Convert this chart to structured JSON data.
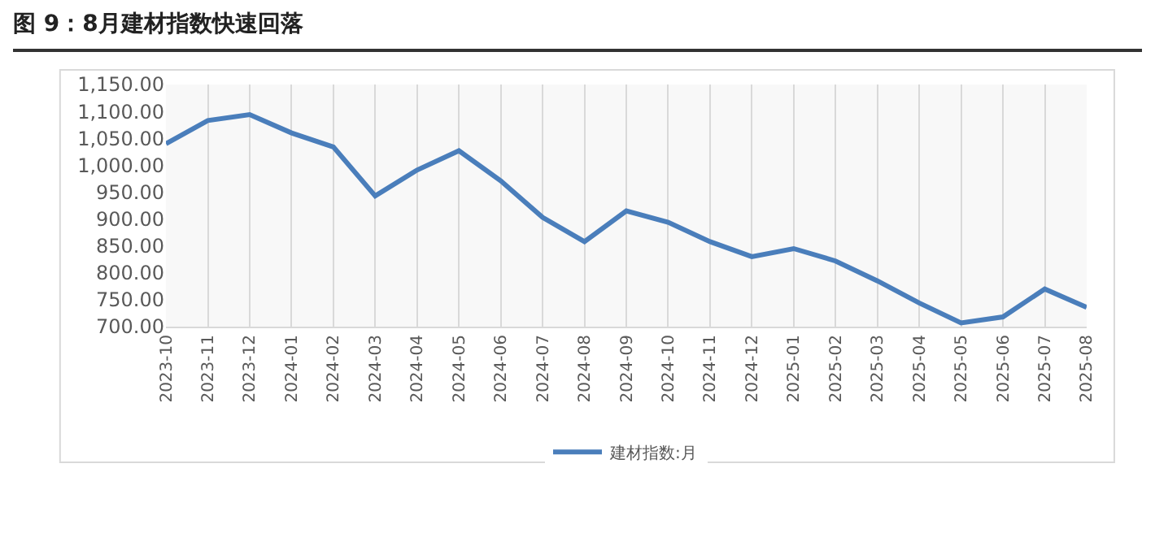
{
  "chart_data": {
    "type": "line",
    "title": "图 9：8月建材指数快速回落",
    "categories": [
      "2023-10",
      "2023-11",
      "2023-12",
      "2024-01",
      "2024-02",
      "2024-03",
      "2024-04",
      "2024-05",
      "2024-06",
      "2024-07",
      "2024-08",
      "2024-09",
      "2024-10",
      "2024-11",
      "2024-12",
      "2025-01",
      "2025-02",
      "2025-03",
      "2025-04",
      "2025-05",
      "2025-06",
      "2025-07",
      "2025-08"
    ],
    "series": [
      {
        "name": "建材指数:月",
        "color": "#4a7ebb",
        "values": [
          1040,
          1083,
          1094,
          1060,
          1034,
          943,
          991,
          1027,
          971,
          903,
          858,
          915,
          894,
          858,
          830,
          845,
          822,
          785,
          744,
          707,
          718,
          770,
          736
        ]
      }
    ],
    "ylim": [
      700,
      1150
    ],
    "yticks": [
      {
        "value": 700,
        "label": "700.00"
      },
      {
        "value": 750,
        "label": "750.00"
      },
      {
        "value": 800,
        "label": "800.00"
      },
      {
        "value": 850,
        "label": "850.00"
      },
      {
        "value": 900,
        "label": "900.00"
      },
      {
        "value": 950,
        "label": "950.00"
      },
      {
        "value": 1000,
        "label": "1,000.00"
      },
      {
        "value": 1050,
        "label": "1,050.00"
      },
      {
        "value": 1100,
        "label": "1,100.00"
      },
      {
        "value": 1150,
        "label": "1,150.00"
      }
    ],
    "grid": "x",
    "legend": "bottom",
    "marker": "none",
    "line_style": "solid"
  }
}
